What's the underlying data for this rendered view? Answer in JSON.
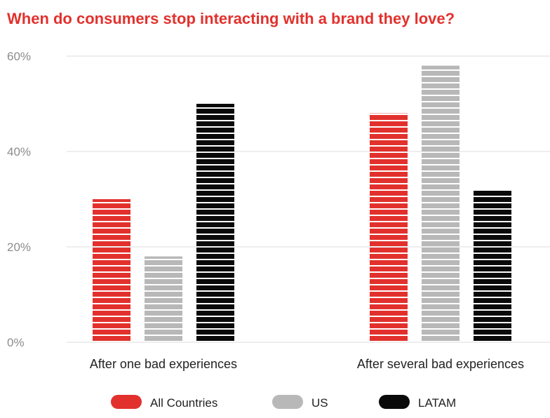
{
  "chart_data": {
    "type": "bar",
    "title": "When do consumers stop interacting with a brand they love?",
    "xlabel": "",
    "ylabel": "",
    "categories": [
      "After one bad experiences",
      "After several bad experiences"
    ],
    "series": [
      {
        "name": "All Countries",
        "color": "#e2312d",
        "values": [
          30,
          48
        ]
      },
      {
        "name": "US",
        "color": "#b8b8b8",
        "values": [
          18,
          58
        ]
      },
      {
        "name": "LATAM",
        "color": "#0a0a0a",
        "values": [
          50,
          32
        ]
      }
    ],
    "ylim": [
      0,
      60
    ],
    "yticks": [
      0,
      20,
      40,
      60
    ],
    "ytick_labels": [
      "0%",
      "20%",
      "40%",
      "60%"
    ],
    "grid": true,
    "legend": "bottom"
  }
}
